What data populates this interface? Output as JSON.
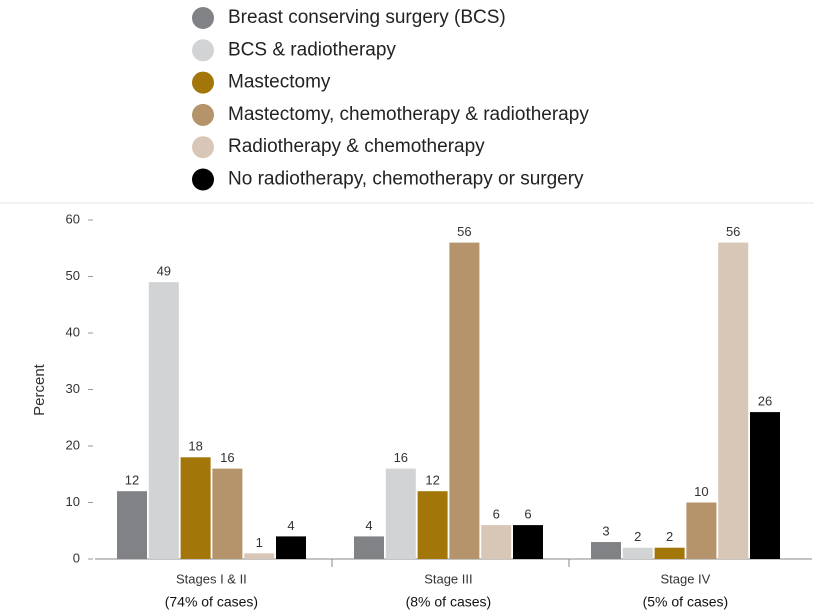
{
  "chart_data": {
    "type": "bar",
    "categories": [
      "Stages I & II",
      "Stage III",
      "Stage IV"
    ],
    "category_notes": [
      "(74% of cases)",
      "(8% of cases)",
      "(5% of cases)"
    ],
    "y_label": "Percent",
    "ylim": [
      0,
      60
    ],
    "yticks": [
      0,
      10,
      20,
      30,
      40,
      50,
      60
    ],
    "legend": "top",
    "series": [
      {
        "name": "Breast conserving surgery (BCS)",
        "color": "#808285",
        "values": [
          12,
          4,
          3
        ]
      },
      {
        "name": "BCS & radiotherapy",
        "color": "#d1d3d4",
        "values": [
          49,
          16,
          2
        ]
      },
      {
        "name": "Mastectomy",
        "color": "#a3760a",
        "values": [
          18,
          12,
          2
        ]
      },
      {
        "name": "Mastectomy, chemotherapy & radiotherapy",
        "color": "#b5936b",
        "values": [
          16,
          56,
          10
        ]
      },
      {
        "name": "Radiotherapy & chemotherapy",
        "color": "#d8c7b7",
        "values": [
          1,
          6,
          56
        ]
      },
      {
        "name": "No radiotherapy, chemotherapy or surgery",
        "color": "#000000",
        "values": [
          4,
          6,
          26
        ]
      }
    ]
  }
}
